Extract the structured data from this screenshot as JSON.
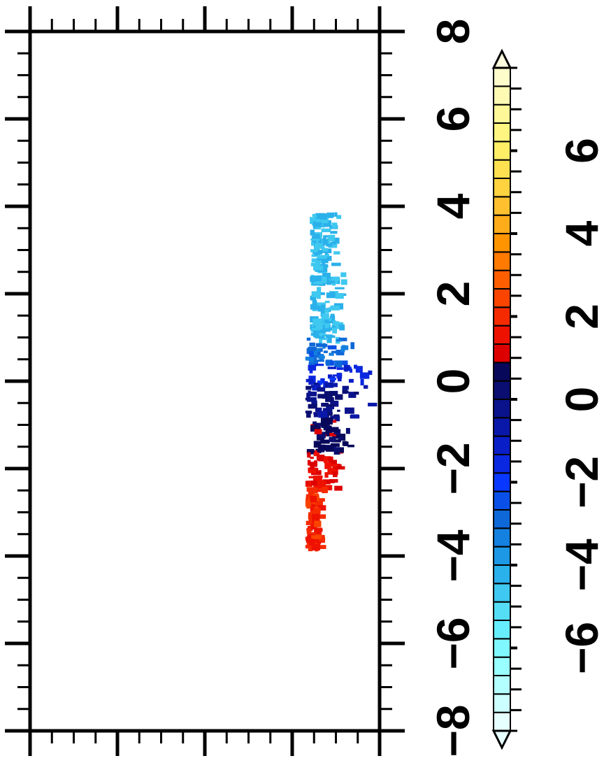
{
  "chart_data": {
    "type": "heatmap",
    "orientation": "rotated-90-ccw",
    "title": "",
    "xlabel": "",
    "ylabel": "",
    "y_axis": {
      "range": [
        -8,
        8
      ],
      "major_ticks": [
        -8,
        -6,
        -4,
        -2,
        0,
        2,
        4,
        6,
        8
      ],
      "tick_labels": [
        "−8",
        "−6",
        "−4",
        "−2",
        "0",
        "2",
        "4",
        "6",
        "8"
      ]
    },
    "x_axis": {
      "range": [
        0,
        4
      ],
      "major_ticks": [
        0,
        1,
        2,
        3,
        4
      ],
      "tick_labels_shown": false
    },
    "colorbar": {
      "range": [
        -8,
        8
      ],
      "step": 0.5,
      "end_arrows": true,
      "label_values": [
        -6,
        -4,
        -2,
        0,
        2,
        4,
        6
      ],
      "tick_labels": [
        "−6",
        "−4",
        "−2",
        "0",
        "2",
        "4",
        "6"
      ],
      "colors": [
        "#e6ffff",
        "#ccffff",
        "#b3ffff",
        "#99ffff",
        "#80f8ff",
        "#66eeff",
        "#55ddf5",
        "#3fc8f0",
        "#2ab0ea",
        "#1c98e5",
        "#1480e0",
        "#0e68d8",
        "#0a50e8",
        "#0838ff",
        "#0a28e0",
        "#0a1ec8",
        "#0a18aa",
        "#0a128c",
        "#0a0e70",
        "#08085a",
        "#dd0000",
        "#ee1100",
        "#f52a00",
        "#fa4400",
        "#ff5e00",
        "#ff7a00",
        "#ff9400",
        "#ffac1a",
        "#ffc030",
        "#ffd240",
        "#ffe050",
        "#ffee66",
        "#fff580",
        "#fff899",
        "#fffab3",
        "#fffccc"
      ]
    },
    "grid": false,
    "clusters": [
      {
        "y": [
          1.0,
          3.9
        ],
        "x": [
          3.2,
          3.6
        ],
        "value": -4.0
      },
      {
        "y": [
          0.4,
          1.0
        ],
        "x": [
          3.15,
          3.75
        ],
        "value": -2.3
      },
      {
        "y": [
          0.0,
          0.4
        ],
        "x": [
          3.15,
          3.95
        ],
        "value": -0.6
      },
      {
        "y": [
          -0.1,
          0.0
        ],
        "x": [
          3.2,
          3.9
        ],
        "value": 0.2
      },
      {
        "y": [
          -0.8,
          -0.1
        ],
        "x": [
          3.15,
          3.9
        ],
        "value": 0.9
      },
      {
        "y": [
          -1.6,
          -0.8
        ],
        "x": [
          3.15,
          3.7
        ],
        "value": 1.7
      },
      {
        "y": [
          -2.4,
          -1.6
        ],
        "x": [
          3.15,
          3.55
        ],
        "value": 2.5
      },
      {
        "y": [
          -3.8,
          -2.4
        ],
        "x": [
          3.15,
          3.35
        ],
        "value": 3.2
      }
    ]
  }
}
